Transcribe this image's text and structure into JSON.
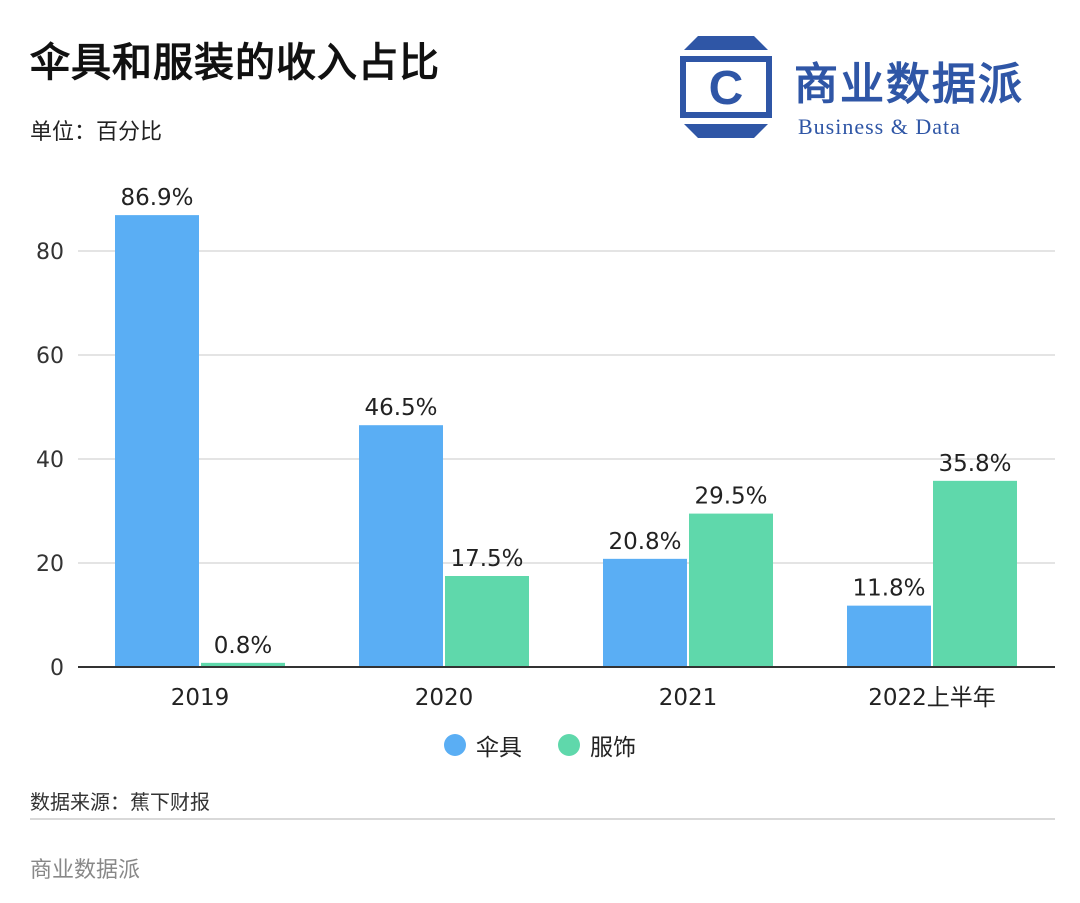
{
  "header": {
    "title": "伞具和服装的收入占比",
    "unit": "单位：百分比"
  },
  "logo": {
    "cn": "商业数据派",
    "en": "Business & Data",
    "letter": "C",
    "color": "#2f56a6"
  },
  "chart_data": {
    "type": "bar",
    "categories": [
      "2019",
      "2020",
      "2021",
      "2022上半年"
    ],
    "series": [
      {
        "name": "伞具",
        "color": "#5aaef4",
        "values": [
          86.9,
          46.5,
          20.8,
          11.8
        ],
        "labels": [
          "86.9%",
          "46.5%",
          "20.8%",
          "11.8%"
        ]
      },
      {
        "name": "服饰",
        "color": "#5fd8ab",
        "values": [
          0.8,
          17.5,
          29.5,
          35.8
        ],
        "labels": [
          "0.8%",
          "17.5%",
          "29.5%",
          "35.8%"
        ]
      }
    ],
    "yticks": [
      "0",
      "20",
      "40",
      "60",
      "80"
    ],
    "ylim": [
      0,
      90
    ],
    "grid": true,
    "legend_position": "bottom-center"
  },
  "footer": {
    "source": "数据来源：蕉下财报",
    "brand": "商业数据派"
  }
}
